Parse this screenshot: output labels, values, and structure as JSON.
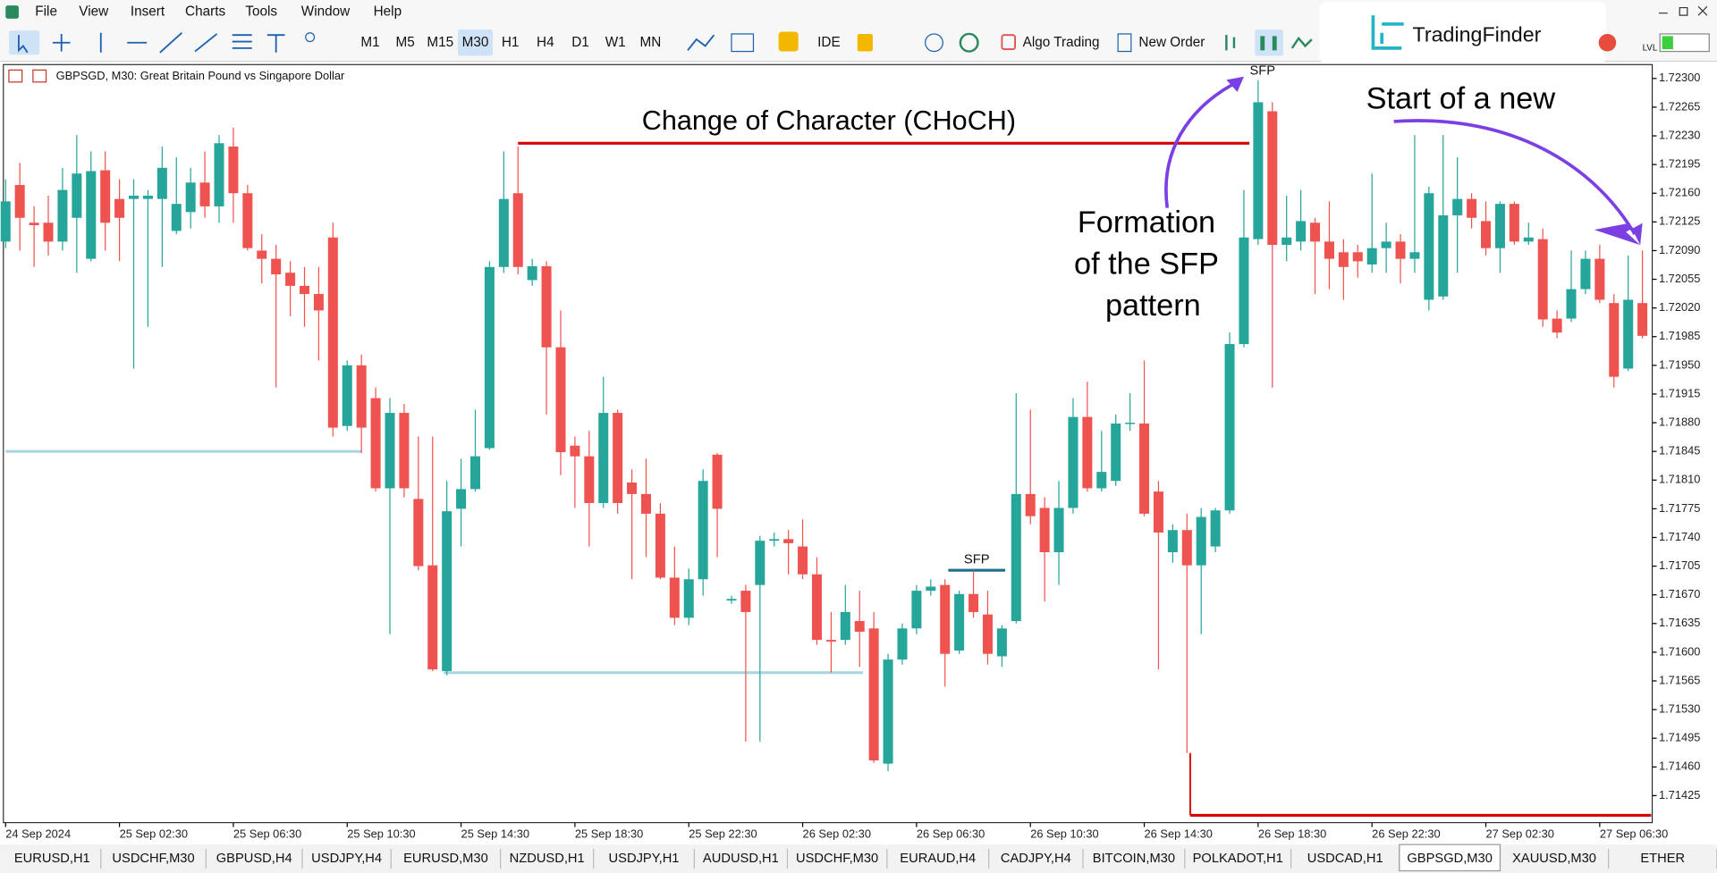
{
  "menu": [
    "File",
    "View",
    "Insert",
    "Charts",
    "Tools",
    "Window",
    "Help"
  ],
  "toolbar": {
    "timeframes": [
      "M1",
      "M5",
      "M15",
      "M30",
      "H1",
      "H4",
      "D1",
      "W1",
      "MN"
    ],
    "ide": "IDE",
    "algo": "Algo Trading",
    "order": "New Order"
  },
  "logo": "TradingFinder",
  "chart_header": "GBPSGD, M30: Great Britain Pound vs Singapore Dollar",
  "tabs": [
    "EURUSD,H1",
    "USDCHF,M30",
    "GBPUSD,H4",
    "USDJPY,H4",
    "EURUSD,M30",
    "NZDUSD,H1",
    "USDJPY,H1",
    "AUDUSD,H1",
    "USDCHF,M30",
    "EURAUD,H4",
    "CADJPY,H4",
    "BITCOIN,M30",
    "POLKADOT,H1",
    "USDCAD,H1",
    "GBPSGD,M30",
    "XAUUSD,M30",
    "ETHER"
  ],
  "chart_data": {
    "type": "candlestick",
    "up_color": "#26a69a",
    "down_color": "#ef5350",
    "categories": [
      "24 Sep 2024",
      null,
      null,
      null,
      null,
      null,
      null,
      null,
      "25 Sep 02:30",
      null,
      null,
      null,
      null,
      null,
      null,
      null,
      "25 Sep 06:30",
      null,
      null,
      null,
      null,
      null,
      null,
      null,
      "25 Sep 10:30",
      null,
      null,
      null,
      null,
      null,
      null,
      null,
      "25 Sep 14:30",
      null,
      null,
      null,
      null,
      null,
      null,
      null,
      "25 Sep 18:30",
      null,
      null,
      null,
      null,
      null,
      null,
      null,
      "25 Sep 22:30",
      null,
      null,
      null,
      null,
      null,
      null,
      null,
      "26 Sep 02:30",
      null,
      null,
      null,
      null,
      null,
      null,
      null,
      "26 Sep 06:30",
      null,
      null,
      null,
      null,
      null,
      null,
      null,
      "26 Sep 10:30",
      null,
      null,
      null,
      null,
      null,
      null,
      null,
      "26 Sep 14:30",
      null,
      null,
      null,
      null,
      null,
      null,
      null,
      "26 Sep 18:30",
      null,
      null,
      null,
      null,
      null,
      null,
      null,
      "26 Sep 22:30",
      null,
      null,
      null,
      null,
      null,
      null,
      null,
      "27 Sep 02:30",
      null,
      null,
      null,
      null,
      null,
      null,
      null,
      "27 Sep 06:30",
      null,
      null,
      null
    ],
    "open": [
      1.72101,
      1.7217,
      1.72124,
      1.72124,
      1.72101,
      1.7213,
      1.7208,
      1.72188,
      1.72153,
      1.72153,
      1.72153,
      1.72153,
      1.72114,
      1.72137,
      1.72173,
      1.72144,
      1.72217,
      1.7216,
      1.7209,
      1.7208,
      1.72063,
      1.72047,
      1.72037,
      1.72106,
      1.71876,
      1.7195,
      1.7191,
      1.718,
      1.71892,
      1.71787,
      1.71706,
      1.71577,
      1.71775,
      1.71799,
      1.71849,
      1.7207,
      1.7216,
      1.72054,
      1.72071,
      1.71972,
      1.71852,
      1.71839,
      1.71782,
      1.71892,
      1.71807,
      1.71793,
      1.71769,
      1.71691,
      1.71642,
      1.71689,
      1.71841,
      1.71663,
      1.71675,
      1.71682,
      1.71736,
      1.71738,
      1.71729,
      1.71695,
      1.71615,
      1.71615,
      1.71638,
      1.71629,
      1.71464,
      1.71591,
      1.71629,
      1.71675,
      1.71682,
      1.71602,
      1.71671,
      1.71646,
      1.71595,
      1.71638,
      1.71793,
      1.71776,
      1.71722,
      1.71776,
      1.71887,
      1.718,
      1.71809,
      1.71879,
      1.71879,
      1.71796,
      1.71722,
      1.71749,
      1.71706,
      1.71729,
      1.71773,
      1.71976,
      1.72104,
      1.7226,
      1.72097,
      1.72101,
      1.72124,
      1.72101,
      1.72088,
      1.72088,
      1.72073,
      1.72093,
      1.72101,
      1.7208,
      1.7203,
      1.72034,
      1.72133,
      1.72153,
      1.72126,
      1.72093,
      1.72147,
      1.72101,
      1.72104,
      1.72007,
      1.72007,
      1.72043,
      1.7208,
      1.72026,
      1.71946,
      1.72026
    ],
    "high": [
      1.72177,
      1.72197,
      1.72144,
      1.72157,
      1.72191,
      1.72231,
      1.72211,
      1.72211,
      1.72177,
      1.72177,
      1.72164,
      1.72217,
      1.72204,
      1.72191,
      1.72211,
      1.72231,
      1.7224,
      1.7217,
      1.7211,
      1.72097,
      1.72077,
      1.7207,
      1.7207,
      1.72124,
      1.71956,
      1.71963,
      1.71923,
      1.7191,
      1.71903,
      1.71863,
      1.71863,
      1.71809,
      1.71836,
      1.71896,
      1.72077,
      1.72211,
      1.72217,
      1.7208,
      1.72077,
      1.72017,
      1.71863,
      1.7187,
      1.71936,
      1.71896,
      1.71823,
      1.71836,
      1.71782,
      1.71729,
      1.71702,
      1.71823,
      1.71843,
      1.71669,
      1.71682,
      1.71742,
      1.71746,
      1.71749,
      1.71762,
      1.71716,
      1.71649,
      1.71682,
      1.71675,
      1.71649,
      1.71598,
      1.71635,
      1.71682,
      1.71689,
      1.71689,
      1.71675,
      1.717,
      1.71675,
      1.71633,
      1.71916,
      1.71896,
      1.71789,
      1.71809,
      1.7191,
      1.7193,
      1.7187,
      1.7189,
      1.71916,
      1.71956,
      1.71809,
      1.71756,
      1.71769,
      1.71776,
      1.71776,
      1.7199,
      1.72164,
      1.72298,
      1.72271,
      1.72157,
      1.72164,
      1.7213,
      1.7215,
      1.72104,
      1.72097,
      1.72184,
      1.72124,
      1.7211,
      1.72231,
      1.72168,
      1.72231,
      1.72204,
      1.7216,
      1.7215,
      1.7215,
      1.7215,
      1.72124,
      1.72117,
      1.72017,
      1.7209,
      1.7209,
      1.72097,
      1.72037,
      1.72084,
      1.7209
    ],
    "low": [
      1.72093,
      1.7209,
      1.7207,
      1.72084,
      1.7209,
      1.72063,
      1.72077,
      1.7209,
      1.72077,
      1.71946,
      1.71997,
      1.7207,
      1.7211,
      1.72117,
      1.7213,
      1.72124,
      1.72124,
      1.7209,
      1.7205,
      1.71923,
      1.7201,
      1.71997,
      1.71956,
      1.71863,
      1.7187,
      1.71843,
      1.71796,
      1.71622,
      1.71789,
      1.717,
      1.71577,
      1.71572,
      1.71729,
      1.71796,
      1.71847,
      1.72063,
      1.72061,
      1.72047,
      1.7189,
      1.71816,
      1.71776,
      1.71729,
      1.71776,
      1.71769,
      1.71689,
      1.71716,
      1.71689,
      1.71633,
      1.71633,
      1.71669,
      1.71716,
      1.71659,
      1.71491,
      1.71491,
      1.71729,
      1.71695,
      1.71689,
      1.71609,
      1.71575,
      1.71609,
      1.71582,
      1.71465,
      1.71455,
      1.71585,
      1.71622,
      1.71669,
      1.71558,
      1.71598,
      1.71642,
      1.71585,
      1.71582,
      1.71635,
      1.71756,
      1.71662,
      1.71682,
      1.71769,
      1.71796,
      1.71796,
      1.71803,
      1.7187,
      1.71766,
      1.71579,
      1.71709,
      1.71477,
      1.71622,
      1.71722,
      1.71769,
      1.71972,
      1.72097,
      1.71923,
      1.72077,
      1.7209,
      1.72037,
      1.72043,
      1.7203,
      1.72057,
      1.72063,
      1.72063,
      1.7205,
      1.72063,
      1.72017,
      1.7203,
      1.72063,
      1.72117,
      1.72084,
      1.72063,
      1.72097,
      1.72097,
      1.71997,
      1.71983,
      1.72003,
      1.72037,
      1.72026,
      1.71923,
      1.71943,
      1.71983
    ],
    "close": [
      1.7215,
      1.7213,
      1.72121,
      1.72101,
      1.72164,
      1.72184,
      1.72187,
      1.72124,
      1.7213,
      1.72157,
      1.72157,
      1.72191,
      1.72147,
      1.72173,
      1.72144,
      1.72221,
      1.7216,
      1.72093,
      1.7208,
      1.72061,
      1.72047,
      1.72037,
      1.72017,
      1.71874,
      1.7195,
      1.71874,
      1.718,
      1.71892,
      1.718,
      1.71705,
      1.71579,
      1.71772,
      1.71799,
      1.71839,
      1.7207,
      1.72153,
      1.7207,
      1.72071,
      1.71972,
      1.71844,
      1.71839,
      1.71782,
      1.71892,
      1.71782,
      1.71793,
      1.71769,
      1.71691,
      1.71642,
      1.71689,
      1.71809,
      1.71775,
      1.71665,
      1.71649,
      1.71736,
      1.71738,
      1.71733,
      1.71695,
      1.71615,
      1.71613,
      1.71649,
      1.71625,
      1.71468,
      1.71591,
      1.71629,
      1.71675,
      1.7168,
      1.71598,
      1.71671,
      1.71649,
      1.71598,
      1.71629,
      1.71793,
      1.71766,
      1.71722,
      1.71776,
      1.71887,
      1.718,
      1.7182,
      1.71879,
      1.7188,
      1.71769,
      1.71746,
      1.71749,
      1.71706,
      1.71765,
      1.71773,
      1.71976,
      1.72106,
      1.72271,
      1.72097,
      1.72106,
      1.72126,
      1.72101,
      1.7208,
      1.7207,
      1.72077,
      1.72093,
      1.72101,
      1.7208,
      1.72088,
      1.7216,
      1.72133,
      1.72153,
      1.7213,
      1.72093,
      1.72147,
      1.72101,
      1.72106,
      1.72006,
      1.7199,
      1.72043,
      1.7208,
      1.7203,
      1.71936,
      1.7203,
      1.71986
    ],
    "ylim": [
      1.71392,
      1.72317
    ],
    "yticks": [
      {
        "value": 1.723,
        "label": "1.72300"
      },
      1.72265,
      {
        "value": 1.7223,
        "label": "1.72230"
      },
      1.72195,
      {
        "value": 1.7216,
        "label": "1.72160"
      },
      1.72125,
      {
        "value": 1.7209,
        "label": "1.72090"
      },
      1.72055,
      {
        "value": 1.7202,
        "label": "1.72020"
      },
      1.71985,
      {
        "value": 1.7195,
        "label": "1.71950"
      },
      1.71915,
      {
        "value": 1.7188,
        "label": "1.71880"
      },
      1.71845,
      {
        "value": 1.7181,
        "label": "1.71810"
      },
      1.71775,
      {
        "value": 1.7174,
        "label": "1.71740"
      },
      1.71705,
      {
        "value": 1.7167,
        "label": "1.71670"
      },
      1.71635,
      {
        "value": 1.716,
        "label": "1.71600"
      },
      1.71565,
      {
        "value": 1.7153,
        "label": "1.71530"
      },
      1.71495,
      {
        "value": 1.7146,
        "label": "1.71460"
      },
      1.71425
    ],
    "levels": [
      {
        "value": 1.72221,
        "color": "#d50000"
      },
      {
        "value": 1.71401,
        "color": "#d50000"
      },
      {
        "value": 1.71845,
        "color": "#a9d6e2"
      },
      {
        "value": 1.71575,
        "color": "#a9d6e2"
      },
      {
        "value": 1.717,
        "color": "#1f6e8c"
      }
    ],
    "choch_label": "Change of Character (CHoCH)",
    "sfp_labels": [
      "SFP",
      "SFP"
    ],
    "formation_label": [
      "Formation",
      "of the SFP",
      "pattern"
    ],
    "new_label": "Start of a new"
  }
}
